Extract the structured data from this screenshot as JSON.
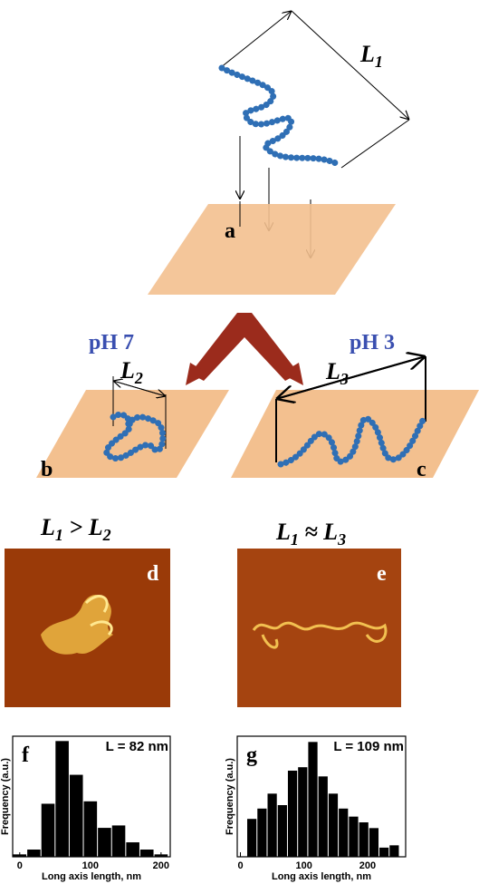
{
  "diagram": {
    "l1": {
      "text": "L",
      "sub": "1"
    },
    "panel_a": "a",
    "panel_b": "b",
    "panel_c": "c",
    "panel_d": "d",
    "panel_e": "e",
    "ph_left": "pH 7",
    "ph_right": "pH 3",
    "l2": {
      "text": "L",
      "sub": "2"
    },
    "l3": {
      "text": "L",
      "sub": "3"
    },
    "relation_left": {
      "a": "L",
      "a_sub": "1",
      "op": " > ",
      "b": "L",
      "b_sub": "2"
    },
    "relation_right": {
      "a": "L",
      "a_sub": "1",
      "op": " ≈ ",
      "b": "L",
      "b_sub": "3"
    }
  },
  "chart_data": [
    {
      "type": "histogram",
      "panel": "f",
      "annotation": "L = 82 nm",
      "ylabel": "Frequency (a.u.)",
      "xlabel": "Long axis length, nm",
      "bins": [
        -10,
        10,
        30,
        50,
        70,
        90,
        110,
        130,
        150,
        170,
        190,
        210
      ],
      "values": [
        1,
        3,
        22,
        48,
        34,
        23,
        12,
        13,
        6,
        3,
        1
      ],
      "color": "#000000",
      "xlim": [
        -10,
        213
      ],
      "xticks": [
        0,
        100,
        200
      ],
      "ylim": [
        0,
        50
      ]
    },
    {
      "type": "histogram",
      "panel": "g",
      "annotation": "L = 109 nm",
      "ylabel": "Frequency (a.u.)",
      "xlabel": "Long axis length, nm",
      "bins": [
        10,
        26,
        42,
        58,
        74,
        90,
        106,
        122,
        138,
        154,
        170,
        186,
        202,
        218,
        234,
        250
      ],
      "values": [
        33,
        42,
        55,
        45,
        75,
        78,
        100,
        70,
        55,
        42,
        35,
        30,
        25,
        8,
        10
      ],
      "color": "#000000",
      "xlim": [
        -5,
        260
      ],
      "xticks": [
        0,
        100,
        200
      ],
      "ylim": [
        0,
        105
      ]
    }
  ]
}
